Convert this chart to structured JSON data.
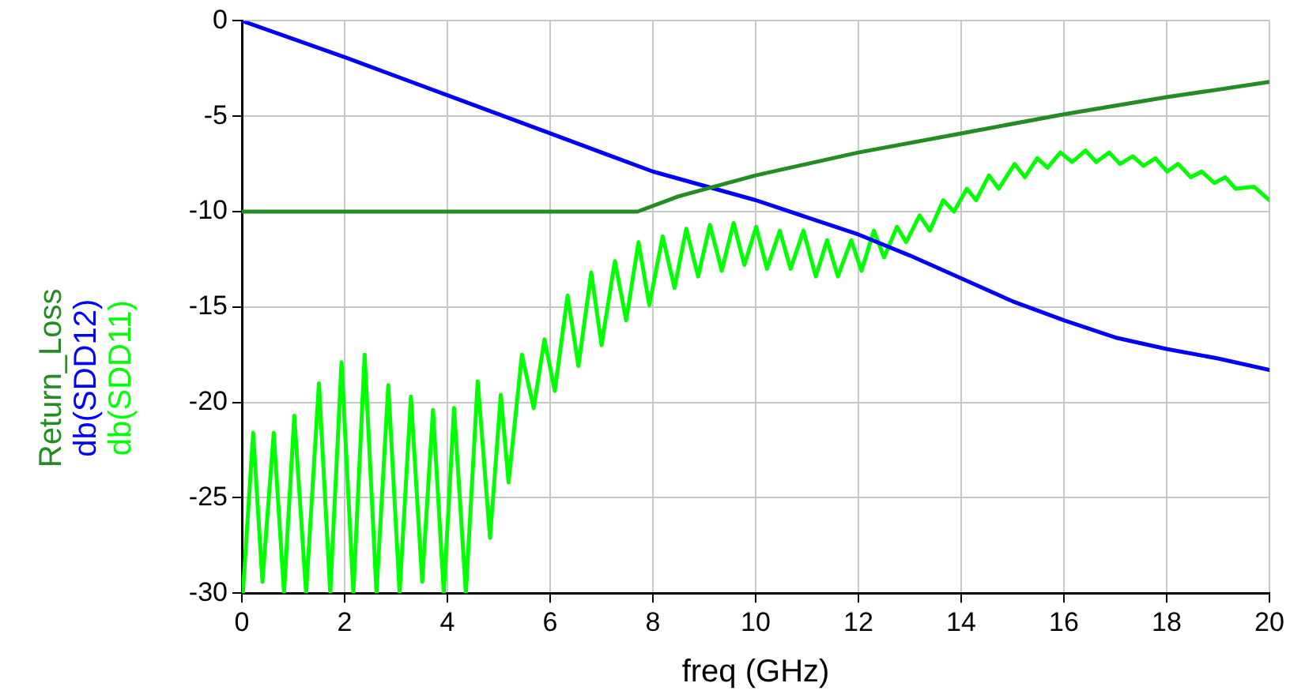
{
  "chart_data": {
    "type": "line",
    "xlabel": "freq (GHz)",
    "xlim": [
      0,
      20
    ],
    "xticks": [
      0,
      2,
      4,
      6,
      8,
      10,
      12,
      14,
      16,
      18,
      20
    ],
    "ylim": [
      -30,
      0
    ],
    "yticks": [
      -30,
      -25,
      -20,
      -15,
      -10,
      -5,
      0
    ],
    "grid": true,
    "legend": "left",
    "marker": "none",
    "line_style": "solid",
    "series": [
      {
        "name": "Return_Loss",
        "color": "#238c23",
        "x": [
          0,
          7.7,
          8.5,
          10,
          12,
          14,
          16,
          18,
          20
        ],
        "values": [
          -10,
          -10,
          -9.2,
          -8.1,
          -6.9,
          -5.9,
          -4.9,
          -4.0,
          -3.2
        ]
      },
      {
        "name": "db(SDD12)",
        "color": "#0000ff",
        "x": [
          0,
          2,
          4,
          6,
          8,
          10,
          12,
          13,
          14,
          15,
          16,
          17,
          18,
          19,
          20
        ],
        "values": [
          0,
          -1.9,
          -3.9,
          -5.9,
          -7.9,
          -9.4,
          -11.2,
          -12.3,
          -13.5,
          -14.7,
          -15.7,
          -16.6,
          -17.2,
          -17.7,
          -18.3
        ]
      },
      {
        "name": "db(SDD11)",
        "color": "#00ff00",
        "x": [
          0.02,
          0.22,
          0.4,
          0.62,
          0.82,
          1.02,
          1.25,
          1.5,
          1.72,
          1.94,
          2.17,
          2.39,
          2.62,
          2.85,
          3.07,
          3.29,
          3.51,
          3.72,
          3.93,
          4.13,
          4.36,
          4.59,
          4.83,
          5.04,
          5.19,
          5.45,
          5.68,
          5.89,
          6.09,
          6.34,
          6.55,
          6.8,
          7.0,
          7.26,
          7.48,
          7.72,
          7.93,
          8.19,
          8.42,
          8.65,
          8.88,
          9.11,
          9.34,
          9.57,
          9.78,
          10.01,
          10.22,
          10.47,
          10.68,
          10.93,
          11.17,
          11.39,
          11.6,
          11.86,
          12.06,
          12.3,
          12.5,
          12.75,
          12.93,
          13.19,
          13.39,
          13.65,
          13.86,
          14.11,
          14.29,
          14.54,
          14.73,
          15.04,
          15.24,
          15.48,
          15.68,
          15.93,
          16.16,
          16.42,
          16.63,
          16.88,
          17.09,
          17.34,
          17.55,
          17.78,
          18.01,
          18.22,
          18.47,
          18.68,
          18.93,
          19.14,
          19.34,
          19.7,
          20
        ],
        "values": [
          -30,
          -21.6,
          -29.4,
          -21.6,
          -30,
          -20.7,
          -30,
          -19.0,
          -30,
          -17.9,
          -30,
          -17.5,
          -30,
          -19.1,
          -30,
          -19.7,
          -29.4,
          -20.4,
          -30,
          -20.3,
          -30,
          -18.9,
          -27.1,
          -19.6,
          -24.2,
          -17.5,
          -20.3,
          -16.7,
          -19.4,
          -14.4,
          -18.1,
          -13.2,
          -17.0,
          -12.6,
          -15.7,
          -11.6,
          -14.9,
          -11.3,
          -14.0,
          -10.9,
          -13.4,
          -10.7,
          -13.1,
          -10.6,
          -12.8,
          -10.8,
          -13.0,
          -11.0,
          -13.0,
          -11.0,
          -13.4,
          -11.5,
          -13.4,
          -11.5,
          -13.1,
          -11.0,
          -12.4,
          -10.8,
          -11.6,
          -10.2,
          -11.0,
          -9.4,
          -10.0,
          -8.8,
          -9.4,
          -8.1,
          -8.8,
          -7.5,
          -8.2,
          -7.2,
          -7.7,
          -6.9,
          -7.4,
          -6.8,
          -7.4,
          -6.9,
          -7.5,
          -7.1,
          -7.6,
          -7.2,
          -7.9,
          -7.5,
          -8.2,
          -7.9,
          -8.5,
          -8.2,
          -8.8,
          -8.7,
          -9.4
        ]
      }
    ]
  }
}
